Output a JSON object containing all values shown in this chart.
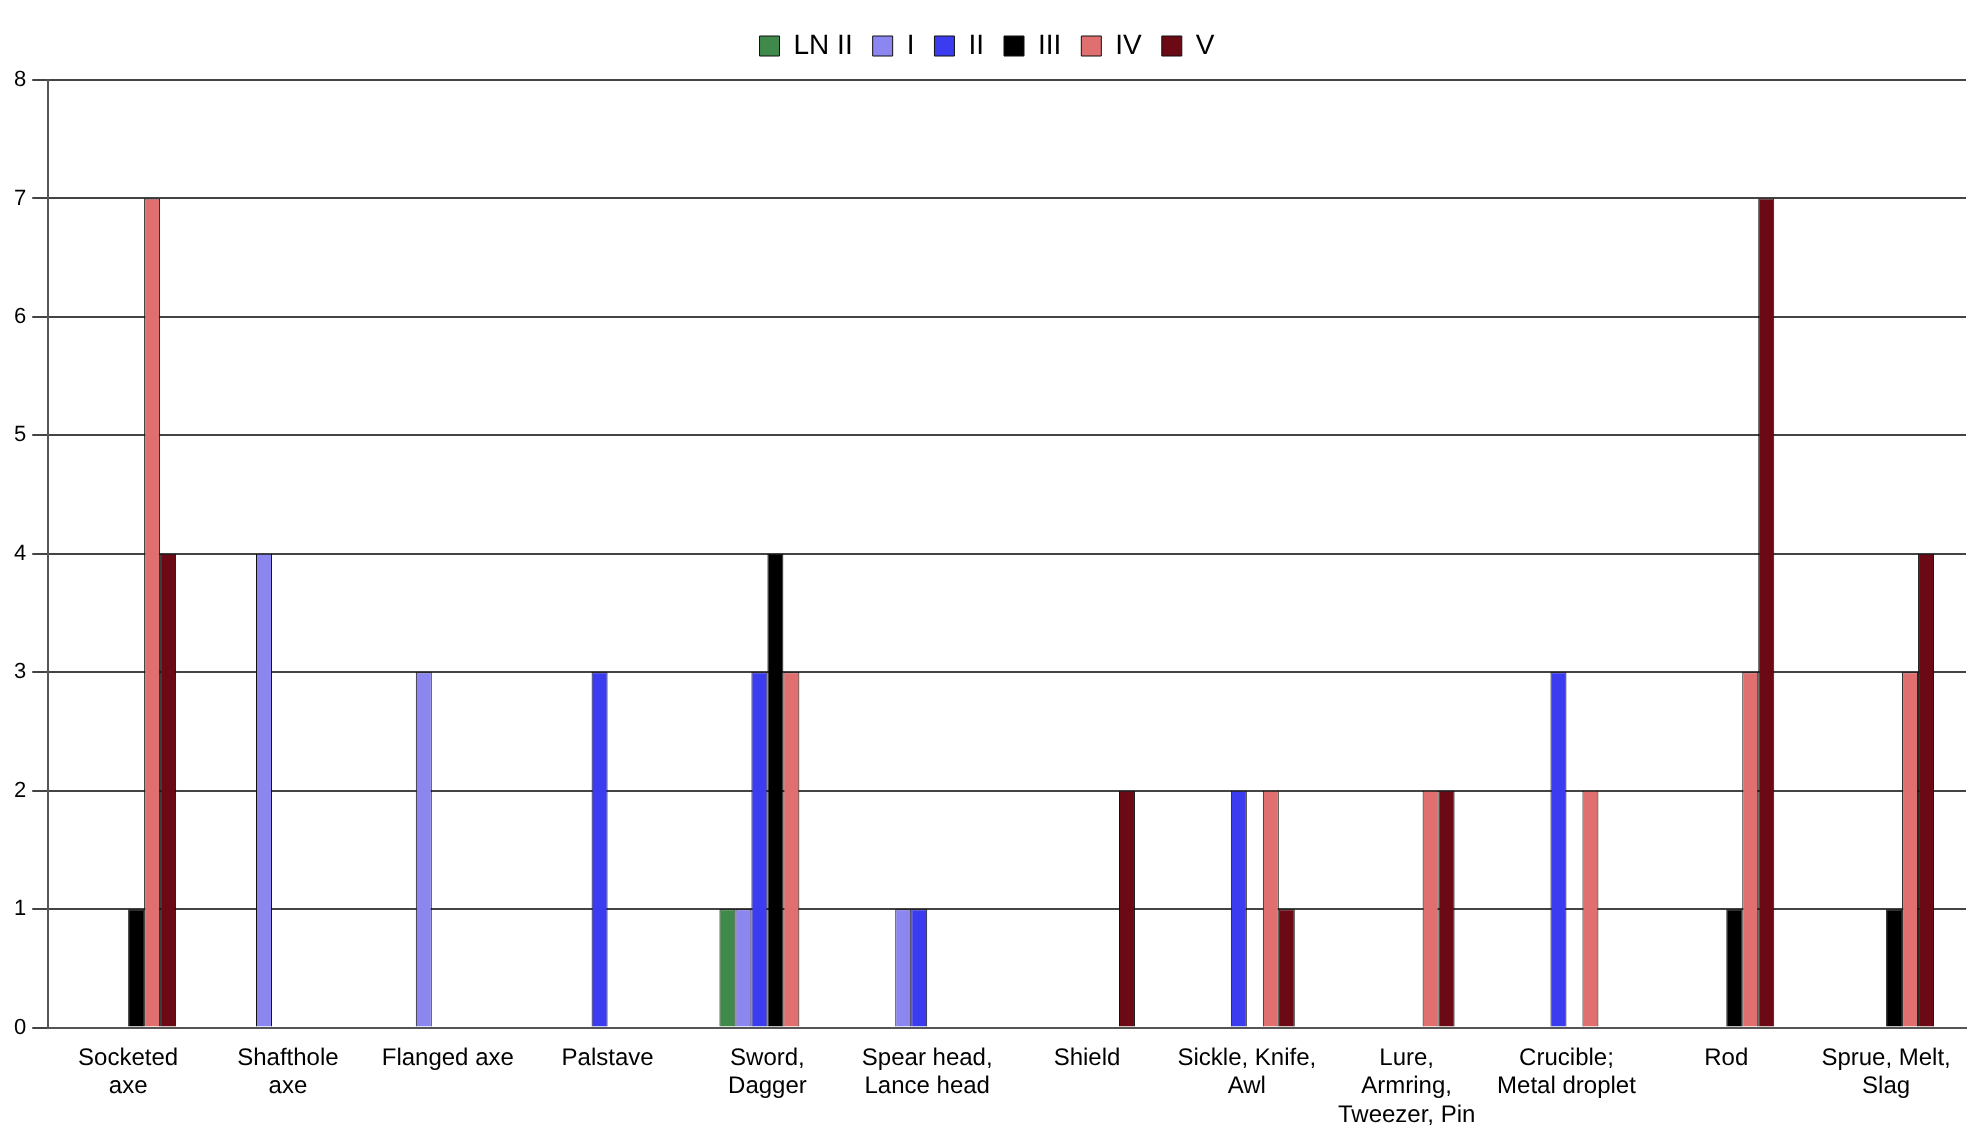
{
  "chart_data": {
    "type": "bar",
    "categories": [
      "Socketed axe",
      "Shafthole axe",
      "Flanged axe",
      "Palstave",
      "Sword, Dagger",
      "Spear head, Lance head",
      "Shield",
      "Sickle, Knife, Awl",
      "Lure, Armring, Tweezer, Pin",
      "Crucible; Metal droplet",
      "Rod",
      "Sprue, Melt, Slag"
    ],
    "series": [
      {
        "name": "LN II",
        "color": "#3f8a4a",
        "values": [
          0,
          0,
          0,
          0,
          1,
          0,
          0,
          0,
          0,
          0,
          0,
          0
        ]
      },
      {
        "name": "I",
        "color": "#8c87f0",
        "values": [
          0,
          4,
          3,
          0,
          1,
          1,
          0,
          0,
          0,
          0,
          0,
          0
        ]
      },
      {
        "name": "II",
        "color": "#3b3cf0",
        "values": [
          0,
          0,
          0,
          3,
          3,
          1,
          0,
          2,
          0,
          3,
          0,
          0
        ]
      },
      {
        "name": "III",
        "color": "#000000",
        "values": [
          1,
          0,
          0,
          0,
          4,
          0,
          0,
          0,
          0,
          0,
          1,
          1
        ]
      },
      {
        "name": "IV",
        "color": "#e07070",
        "values": [
          7,
          0,
          0,
          0,
          3,
          0,
          0,
          2,
          2,
          2,
          3,
          3
        ]
      },
      {
        "name": "V",
        "color": "#6b0a14",
        "values": [
          4,
          0,
          0,
          0,
          0,
          0,
          2,
          1,
          2,
          0,
          7,
          4
        ]
      }
    ],
    "ylim": [
      0,
      8
    ],
    "yticks": [
      0,
      1,
      2,
      3,
      4,
      5,
      6,
      7,
      8
    ],
    "grid": "y",
    "legend": "top"
  }
}
